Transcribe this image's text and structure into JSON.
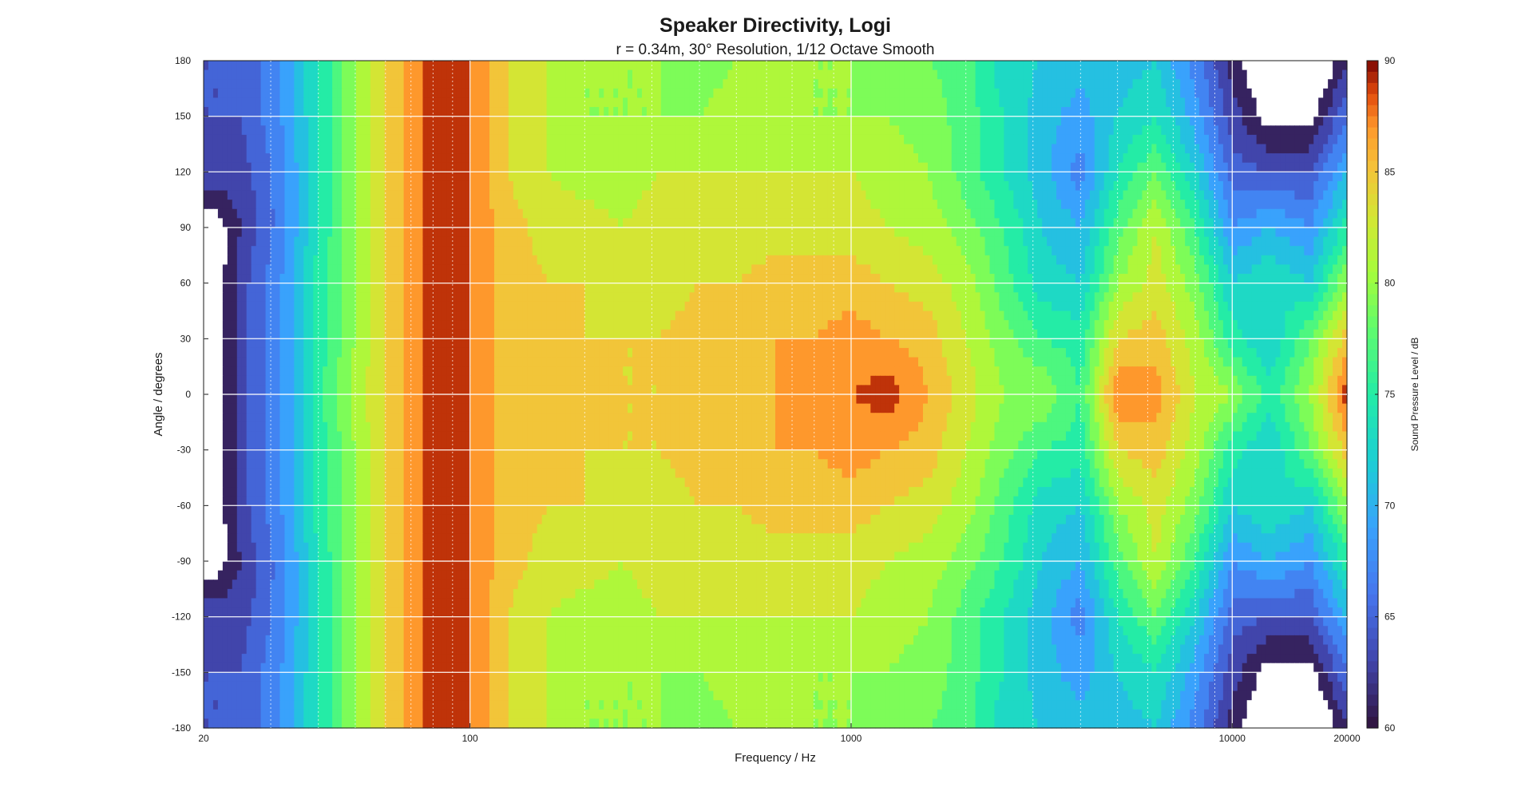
{
  "chart_data": {
    "type": "heatmap",
    "title": "Speaker Directivity, Logi",
    "subtitle": "r = 0.34m, 30° Resolution, 1/12 Octave Smooth",
    "xlabel": "Frequency / Hz",
    "ylabel": "Angle / degrees",
    "colorbar_label": "Sound Pressure Level / dB",
    "x_scale": "log",
    "xlim": [
      20,
      20000
    ],
    "ylim": [
      -180,
      180
    ],
    "x_ticks": [
      20,
      100,
      1000,
      10000,
      20000
    ],
    "x_tick_labels": [
      "20",
      "100",
      "1000",
      "10000",
      "20000"
    ],
    "y_ticks": [
      180,
      150,
      120,
      90,
      60,
      30,
      0,
      -30,
      -60,
      -90,
      -120,
      -150,
      -180
    ],
    "y_tick_labels": [
      "180",
      "150",
      "120",
      "90",
      "60",
      "30",
      "0",
      "-30",
      "-60",
      "-90",
      "-120",
      "-150",
      "-180"
    ],
    "clim": [
      60,
      90
    ],
    "colorbar_ticks": [
      90,
      85,
      80,
      75,
      70,
      65,
      60
    ],
    "colorbar_tick_labels": [
      "90",
      "85",
      "80",
      "75",
      "70",
      "65",
      "60"
    ],
    "grid": true,
    "colormap": "turbo",
    "below_range_color": "#ffffff",
    "angles": [
      -180,
      -150,
      -120,
      -90,
      -60,
      -30,
      0,
      30,
      60,
      90,
      120,
      150,
      180
    ],
    "frequencies": [
      20,
      25,
      32,
      40,
      50,
      63,
      80,
      100,
      125,
      160,
      200,
      250,
      315,
      400,
      500,
      630,
      800,
      1000,
      1250,
      1600,
      2000,
      2500,
      3150,
      4000,
      5000,
      6300,
      8000,
      10000,
      12500,
      16000,
      20000
    ],
    "spl_db": [
      [
        64,
        64,
        68,
        74,
        80,
        85,
        89,
        88,
        84,
        82,
        80,
        80,
        80,
        79,
        80,
        80,
        80,
        80,
        79,
        78,
        77,
        73,
        72,
        71,
        71,
        72,
        67,
        61,
        57,
        55,
        62
      ],
      [
        64,
        64,
        68,
        74,
        80,
        85,
        89,
        88,
        84,
        82,
        80,
        80,
        80,
        80,
        81,
        81,
        80,
        80,
        80,
        79,
        77,
        74,
        71,
        69,
        72,
        74,
        69,
        63,
        59,
        59,
        66
      ],
      [
        64,
        63,
        67,
        74,
        80,
        85,
        89,
        88,
        84,
        82,
        81,
        81,
        82,
        82,
        82,
        82,
        82,
        82,
        81,
        80,
        77,
        74,
        71,
        67,
        74,
        78,
        72,
        65,
        64,
        64,
        70
      ],
      [
        57,
        62,
        67,
        74,
        80,
        85,
        89,
        88,
        85,
        83,
        83,
        82,
        83,
        83,
        83,
        83,
        83,
        83,
        82,
        81,
        79,
        76,
        72,
        70,
        77,
        82,
        76,
        68,
        70,
        68,
        75
      ],
      [
        56,
        63,
        68,
        75,
        80,
        85,
        89,
        88,
        85,
        84,
        84,
        83,
        83,
        84,
        84,
        85,
        85,
        85,
        84,
        83,
        81,
        77,
        73,
        72,
        80,
        83,
        79,
        72,
        74,
        72,
        80
      ],
      [
        56,
        63,
        68,
        75,
        80,
        85,
        89,
        88,
        85,
        85,
        84,
        84,
        84,
        85,
        85,
        86,
        86,
        87,
        86,
        85,
        82,
        79,
        76,
        75,
        84,
        85,
        81,
        75,
        72,
        78,
        85
      ],
      [
        56,
        63,
        68,
        75,
        81,
        85,
        89,
        88,
        85,
        85,
        85,
        84,
        84,
        86,
        86,
        86,
        87,
        88,
        89,
        86,
        83,
        80,
        80,
        76,
        88,
        87,
        82,
        80,
        75,
        80,
        89
      ],
      [
        56,
        63,
        68,
        75,
        80,
        85,
        89,
        88,
        85,
        85,
        84,
        84,
        84,
        85,
        85,
        86,
        86,
        87,
        86,
        85,
        82,
        79,
        76,
        75,
        84,
        85,
        81,
        75,
        72,
        78,
        85
      ],
      [
        56,
        63,
        68,
        75,
        80,
        85,
        89,
        88,
        85,
        84,
        84,
        83,
        83,
        84,
        84,
        85,
        85,
        85,
        84,
        83,
        81,
        77,
        73,
        72,
        80,
        83,
        79,
        72,
        74,
        72,
        80
      ],
      [
        57,
        62,
        67,
        74,
        80,
        85,
        89,
        88,
        85,
        83,
        83,
        82,
        83,
        83,
        83,
        83,
        83,
        83,
        82,
        81,
        79,
        76,
        72,
        70,
        77,
        82,
        76,
        68,
        70,
        68,
        75
      ],
      [
        64,
        63,
        67,
        74,
        80,
        85,
        89,
        88,
        84,
        82,
        81,
        81,
        82,
        82,
        82,
        82,
        82,
        82,
        81,
        80,
        77,
        74,
        71,
        67,
        74,
        78,
        72,
        65,
        64,
        64,
        70
      ],
      [
        64,
        64,
        68,
        74,
        80,
        85,
        89,
        88,
        84,
        82,
        80,
        80,
        80,
        80,
        81,
        81,
        80,
        80,
        80,
        79,
        77,
        74,
        71,
        69,
        72,
        74,
        69,
        63,
        59,
        59,
        66
      ],
      [
        64,
        64,
        68,
        74,
        80,
        85,
        89,
        88,
        84,
        82,
        80,
        80,
        80,
        79,
        80,
        80,
        80,
        80,
        79,
        78,
        77,
        73,
        72,
        71,
        71,
        72,
        67,
        61,
        57,
        55,
        62
      ]
    ]
  }
}
